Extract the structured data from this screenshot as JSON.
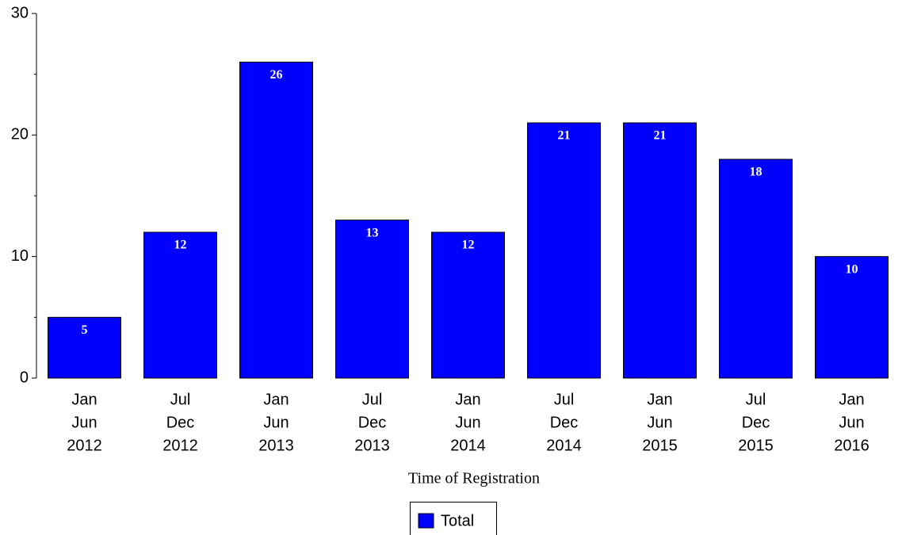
{
  "chart_data": {
    "type": "bar",
    "x_label": "Time of Registration",
    "categories": [
      [
        "Jan",
        "Jun",
        "2012"
      ],
      [
        "Jul",
        "Dec",
        "2012"
      ],
      [
        "Jan",
        "Jun",
        "2013"
      ],
      [
        "Jul",
        "Dec",
        "2013"
      ],
      [
        "Jan",
        "Jun",
        "2014"
      ],
      [
        "Jul",
        "Dec",
        "2014"
      ],
      [
        "Jan",
        "Jun",
        "2015"
      ],
      [
        "Jul",
        "Dec",
        "2015"
      ],
      [
        "Jan",
        "Jun",
        "2016"
      ]
    ],
    "series": [
      {
        "name": "Total",
        "color": "#0000ff",
        "values": [
          5,
          12,
          26,
          13,
          12,
          21,
          21,
          18,
          10
        ]
      }
    ],
    "ylim": [
      0,
      30
    ],
    "yticks": [
      0,
      10,
      20,
      30
    ],
    "minor_yticks": [
      5,
      15,
      25
    ],
    "grid": false,
    "legend": "bottom"
  }
}
